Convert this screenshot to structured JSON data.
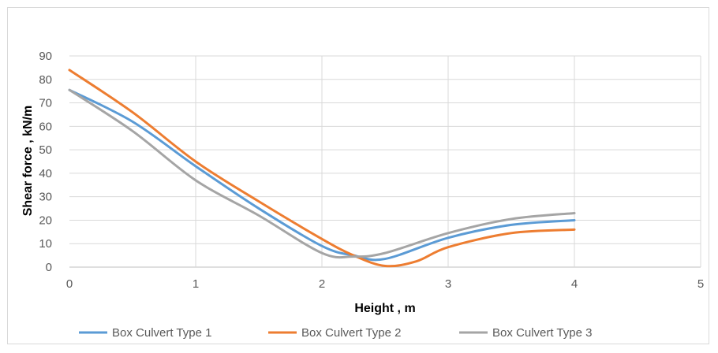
{
  "chart_data": {
    "type": "line",
    "title": "",
    "xlabel": "Height , m",
    "ylabel": "Shear force , kN/m",
    "xlim": [
      0,
      5
    ],
    "ylim": [
      0,
      90
    ],
    "xticks": [
      0,
      1,
      2,
      3,
      4,
      5
    ],
    "yticks": [
      0,
      10,
      20,
      30,
      40,
      50,
      60,
      70,
      80,
      90
    ],
    "grid": true,
    "smooth": true,
    "legend_position": "bottom",
    "series": [
      {
        "name": "Box Culvert Type 1",
        "color": "#5b9bd5",
        "x": [
          0,
          0.5,
          1.0,
          1.5,
          2.0,
          2.25,
          2.5,
          3.0,
          3.5,
          4.0
        ],
        "y": [
          75.5,
          62,
          43,
          25,
          9,
          5,
          3.5,
          12.5,
          18,
          20
        ]
      },
      {
        "name": "Box Culvert Type 2",
        "color": "#ed7d31",
        "x": [
          0,
          0.5,
          1.0,
          1.5,
          2.0,
          2.25,
          2.5,
          2.75,
          3.0,
          3.5,
          4.0
        ],
        "y": [
          84,
          66,
          45,
          28,
          12,
          5,
          0.5,
          2.5,
          8.5,
          14.5,
          16
        ]
      },
      {
        "name": "Box Culvert Type 3",
        "color": "#a5a5a5",
        "x": [
          0,
          0.5,
          1.0,
          1.5,
          2.0,
          2.25,
          2.5,
          3.0,
          3.5,
          4.0
        ],
        "y": [
          75.5,
          58,
          37,
          22,
          6,
          4.5,
          6,
          14.5,
          20.5,
          23
        ]
      }
    ]
  }
}
